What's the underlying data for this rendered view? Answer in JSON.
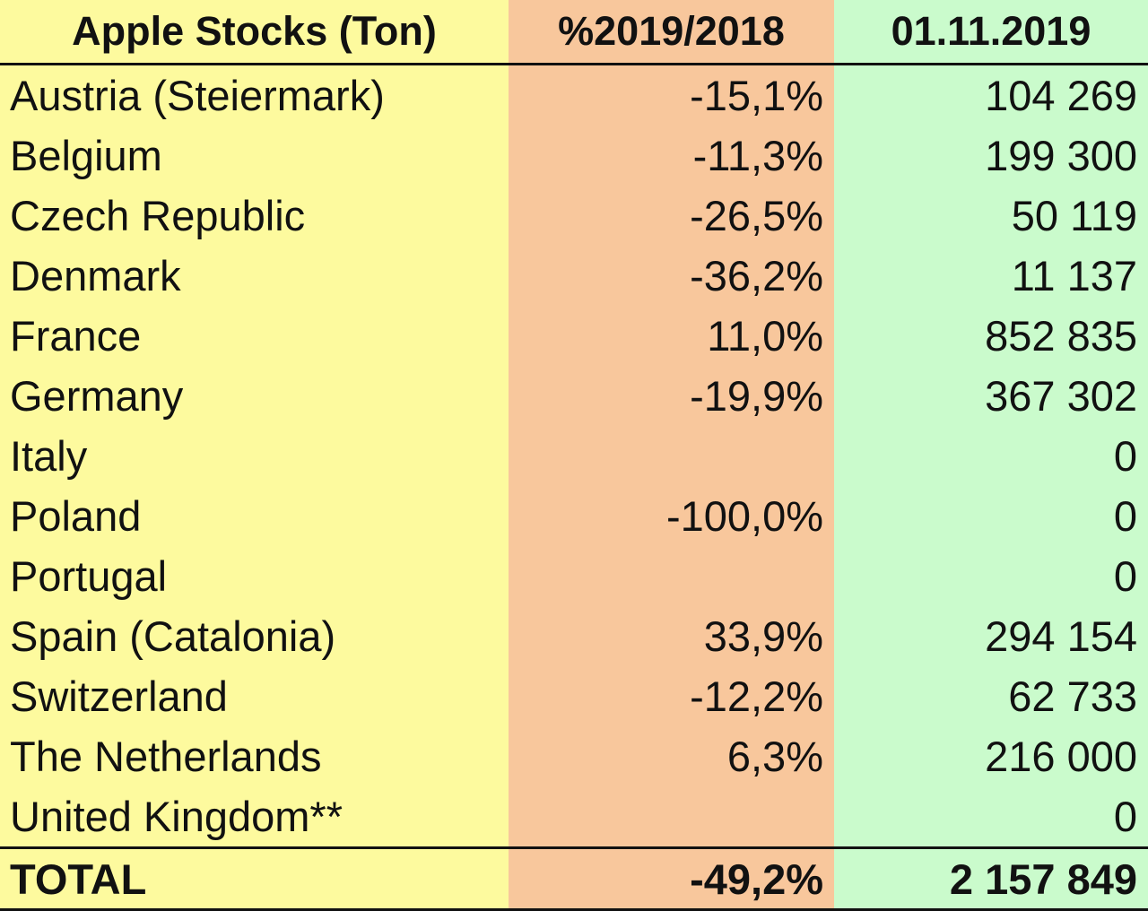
{
  "table": {
    "headers": [
      "Apple Stocks (Ton)",
      "%2019/2018",
      "01.11.2019"
    ],
    "rows": [
      [
        "Austria (Steiermark)",
        "-15,1%",
        "104 269"
      ],
      [
        "Belgium",
        "-11,3%",
        "199 300"
      ],
      [
        "Czech Republic",
        "-26,5%",
        "50 119"
      ],
      [
        "Denmark",
        "-36,2%",
        "11 137"
      ],
      [
        "France",
        "11,0%",
        "852 835"
      ],
      [
        "Germany",
        "-19,9%",
        "367 302"
      ],
      [
        "Italy",
        "",
        "0"
      ],
      [
        "Poland",
        "-100,0%",
        "0"
      ],
      [
        "Portugal",
        "",
        "0"
      ],
      [
        "Spain (Catalonia)",
        "33,9%",
        "294 154"
      ],
      [
        "Switzerland",
        "-12,2%",
        "62 733"
      ],
      [
        "The Netherlands",
        "6,3%",
        "216 000"
      ],
      [
        "United Kingdom**",
        "",
        "0"
      ]
    ],
    "total": [
      "TOTAL",
      "-49,2%",
      "2 157 849"
    ]
  },
  "colors": {
    "country_column": "#fdfa9e",
    "change_column": "#f8c79c",
    "stock_column": "#cafbcc"
  }
}
